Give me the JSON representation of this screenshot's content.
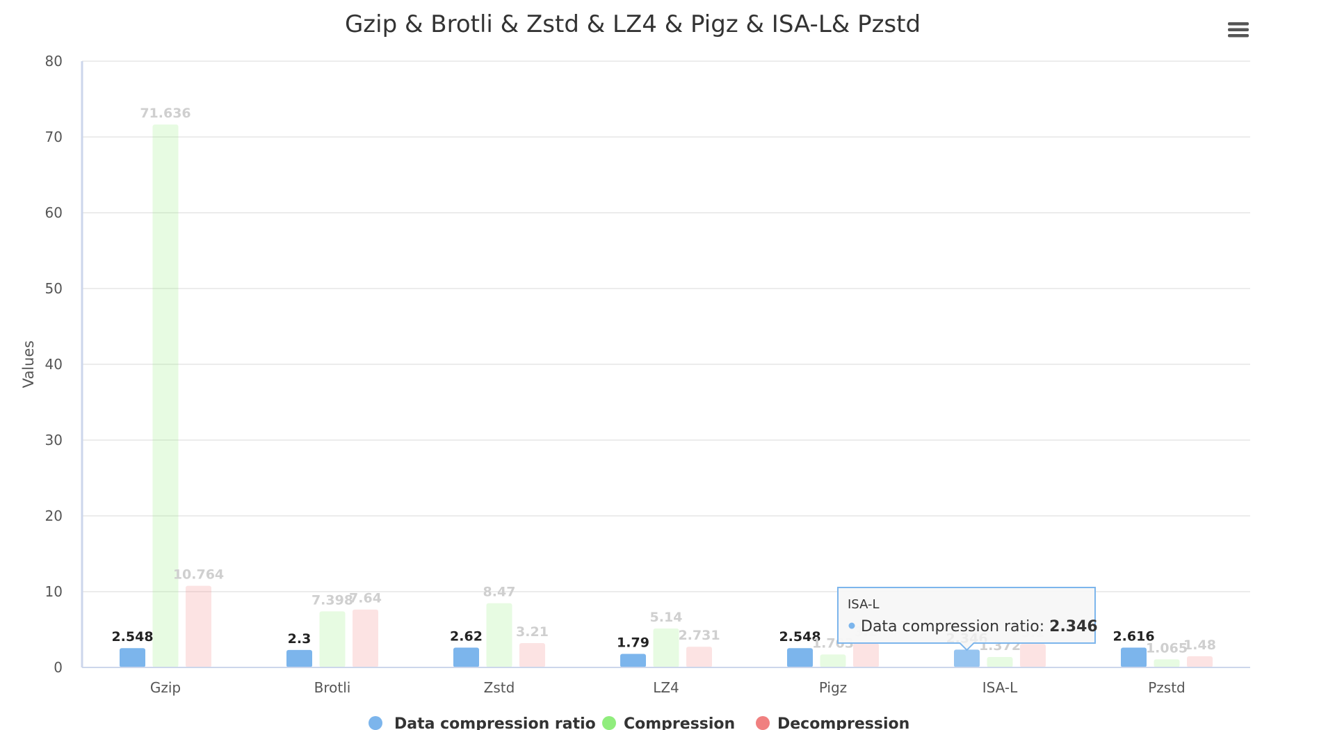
{
  "chart_data": {
    "type": "bar",
    "title": "Gzip & Brotli & Zstd & LZ4 & Pigz & ISA-L& Pzstd",
    "ylabel": "Values",
    "xlabel": "",
    "ylim": [
      0,
      80
    ],
    "yticks": [
      0,
      10,
      20,
      30,
      40,
      50,
      60,
      70,
      80
    ],
    "grid": true,
    "legend_position": "bottom-center",
    "categories": [
      "Gzip",
      "Brotli",
      "Zstd",
      "LZ4",
      "Pigz",
      "ISA-L",
      "Pzstd"
    ],
    "series": [
      {
        "name": "Data compression ratio",
        "color": "#7cb5ec",
        "values": [
          2.548,
          2.3,
          2.62,
          1.79,
          2.548,
          2.346,
          2.616
        ]
      },
      {
        "name": "Compression",
        "color": "#90ed7d",
        "values": [
          71.636,
          7.398,
          8.47,
          5.14,
          1.703,
          1.372,
          1.065
        ]
      },
      {
        "name": "Decompression",
        "color": "#f08080",
        "values": [
          10.764,
          7.64,
          3.21,
          2.731,
          3.2,
          3.1,
          1.48
        ]
      }
    ],
    "dimmed_series": [
      "Compression",
      "Decompression"
    ]
  },
  "tooltip": {
    "category": "ISA-L",
    "series_name": "Data compression ratio",
    "value": "2.346",
    "color": "#7cb5ec"
  },
  "menu_icon": "hamburger-menu-icon"
}
